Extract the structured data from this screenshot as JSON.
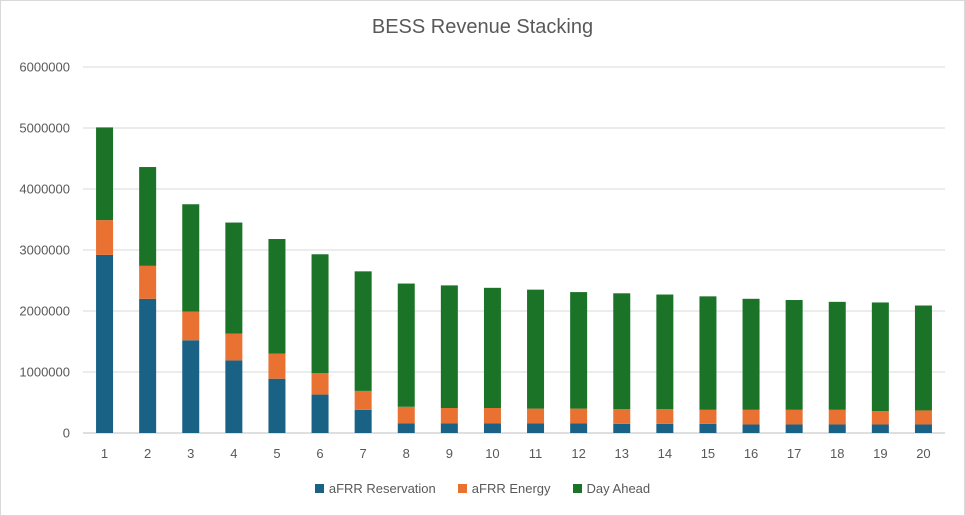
{
  "chart_data": {
    "type": "bar",
    "stacked": true,
    "title": "BESS Revenue Stacking",
    "xlabel": "",
    "ylabel": "",
    "ylim": [
      0,
      6000000
    ],
    "yticks": [
      "0",
      "1000000",
      "2000000",
      "3000000",
      "4000000",
      "5000000",
      "6000000"
    ],
    "grid": true,
    "legend_position": "bottom",
    "categories": [
      "1",
      "2",
      "3",
      "4",
      "5",
      "6",
      "7",
      "8",
      "9",
      "10",
      "11",
      "12",
      "13",
      "14",
      "15",
      "16",
      "17",
      "18",
      "19",
      "20"
    ],
    "series": [
      {
        "name": "aFRR Reservation",
        "color": "#1a6285",
        "values": [
          2920000,
          2200000,
          1520000,
          1190000,
          890000,
          630000,
          380000,
          160000,
          160000,
          160000,
          160000,
          160000,
          150000,
          150000,
          150000,
          140000,
          140000,
          140000,
          140000,
          140000
        ]
      },
      {
        "name": "aFRR Energy",
        "color": "#e97132",
        "values": [
          570000,
          540000,
          470000,
          440000,
          410000,
          350000,
          310000,
          270000,
          250000,
          250000,
          240000,
          240000,
          240000,
          240000,
          230000,
          240000,
          240000,
          240000,
          220000,
          230000
        ]
      },
      {
        "name": "Day Ahead",
        "color": "#1b7328",
        "values": [
          1520000,
          1620000,
          1760000,
          1820000,
          1880000,
          1950000,
          1960000,
          2020000,
          2010000,
          1970000,
          1950000,
          1910000,
          1900000,
          1880000,
          1860000,
          1820000,
          1800000,
          1770000,
          1780000,
          1720000
        ]
      }
    ]
  }
}
